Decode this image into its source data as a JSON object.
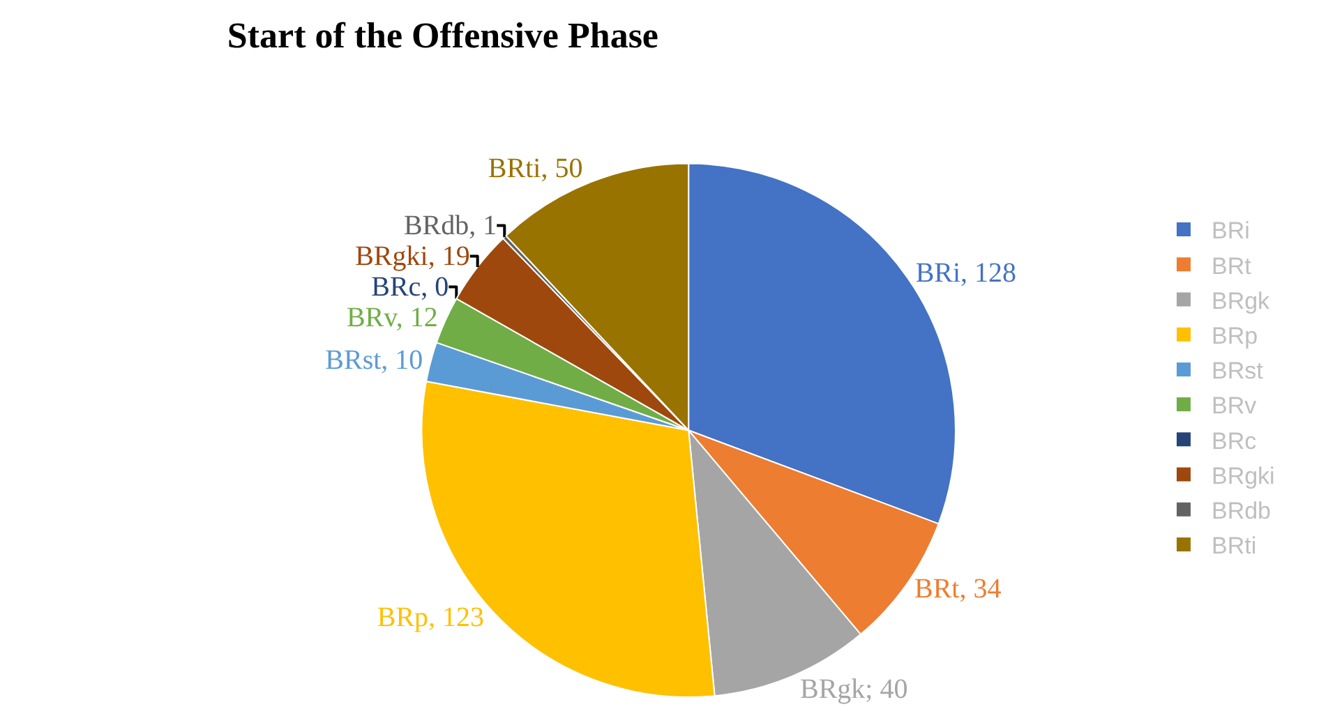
{
  "chart_data": {
    "type": "pie",
    "title": "Start of the Offensive Phase",
    "categories": [
      "BRi",
      "BRt",
      "BRgk",
      "BRp",
      "BRst",
      "BRv",
      "BRc",
      "BRgki",
      "BRdb",
      "BRti"
    ],
    "values": [
      128,
      34,
      40,
      123,
      10,
      12,
      0,
      19,
      1,
      50
    ],
    "colors": [
      "#4472c4",
      "#ed7d31",
      "#a5a5a5",
      "#ffc000",
      "#5b9bd5",
      "#70ad47",
      "#264478",
      "#9e480e",
      "#636363",
      "#997300"
    ],
    "value_labels": [
      "BRi, 128",
      "BRt, 34",
      "BRgk; 40",
      "BRp, 123",
      "BRst, 10",
      "BRv, 12",
      "BRc, 0",
      "BRgki, 19",
      "BRdb, 1",
      "BRti, 50"
    ],
    "legend": "right"
  }
}
